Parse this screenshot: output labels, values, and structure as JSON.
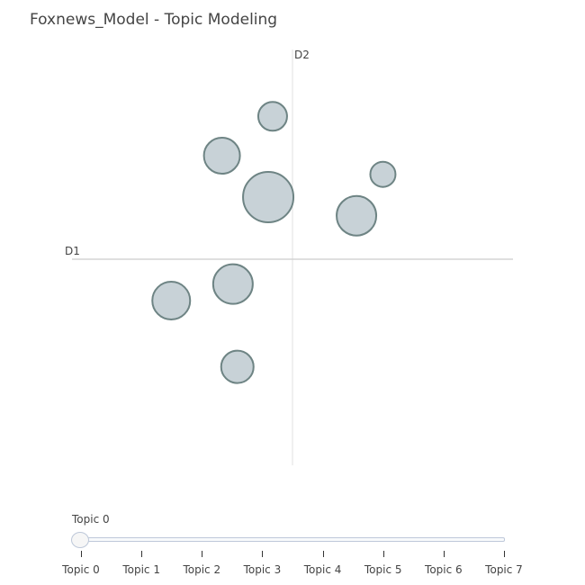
{
  "title": "Foxnews_Model - Topic Modeling",
  "chart_data": {
    "type": "scatter",
    "title": "Foxnews_Model - Topic Modeling",
    "xlabel": "D1",
    "ylabel": "D2",
    "xlim": [
      -1,
      1
    ],
    "ylim": [
      -1,
      1
    ],
    "grid": false,
    "points": [
      {
        "x": -0.09,
        "y": 0.69,
        "size": 16
      },
      {
        "x": -0.32,
        "y": 0.5,
        "size": 20
      },
      {
        "x": 0.41,
        "y": 0.41,
        "size": 14
      },
      {
        "x": -0.11,
        "y": 0.3,
        "size": 28
      },
      {
        "x": 0.29,
        "y": 0.21,
        "size": 22
      },
      {
        "x": -0.27,
        "y": -0.12,
        "size": 22
      },
      {
        "x": -0.55,
        "y": -0.2,
        "size": 21
      },
      {
        "x": -0.25,
        "y": -0.52,
        "size": 18
      }
    ],
    "marker_fill": "#C8D2D7",
    "marker_line": "#6E8484"
  },
  "slider": {
    "current_label": "Topic 0",
    "steps": [
      "Topic 0",
      "Topic 1",
      "Topic 2",
      "Topic 3",
      "Topic 4",
      "Topic 5",
      "Topic 6",
      "Topic 7"
    ]
  }
}
